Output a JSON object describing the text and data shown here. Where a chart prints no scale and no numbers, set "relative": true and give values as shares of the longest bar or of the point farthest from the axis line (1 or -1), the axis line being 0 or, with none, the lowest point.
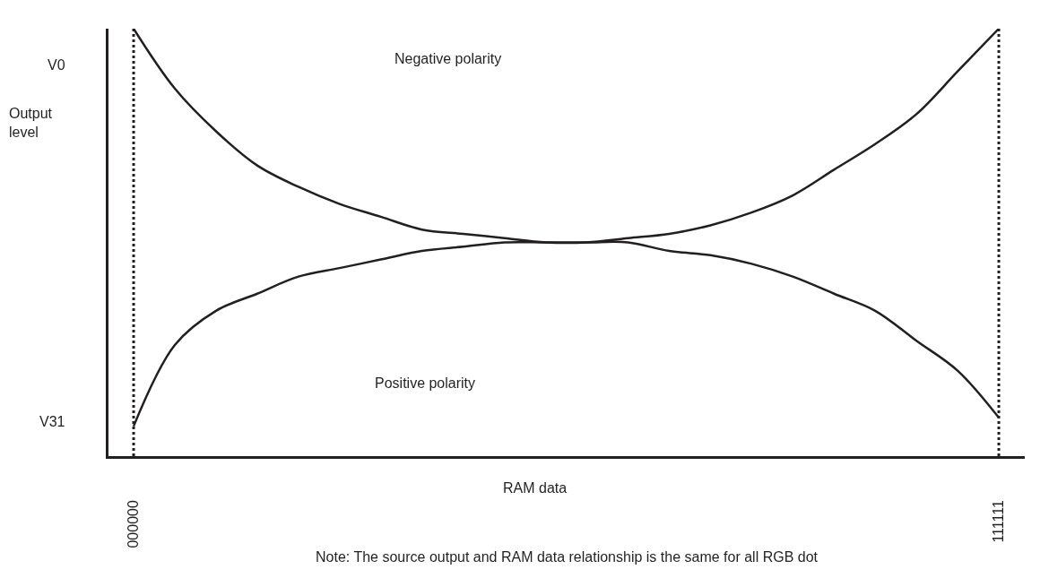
{
  "chart_data": {
    "type": "line",
    "relative": true,
    "xlabel": "RAM data",
    "ylabel": "Output\nlevel",
    "annotations": [
      "Note: The source output and RAM data relationship is the same for all RGB dot",
      "V0",
      "V31",
      "Negative polarity",
      "Positive polarity"
    ],
    "categories": [
      "000000",
      null,
      null,
      null,
      null,
      null,
      null,
      null,
      null,
      null,
      null,
      null,
      null,
      null,
      null,
      null,
      null,
      null,
      null,
      null,
      null,
      "111111"
    ],
    "series": [
      {
        "color": "#231f20",
        "values": [
          1,
          0.86,
          0.76,
          0.68,
          0.63,
          0.59,
          0.56,
          0.53,
          0.52,
          0.51,
          0.5,
          0.5,
          0.51,
          0.52,
          0.54,
          0.57,
          0.61,
          0.67,
          0.73,
          0.8,
          0.9,
          1
        ]
      },
      {
        "color": "#231f20",
        "values": [
          0.07,
          0.26,
          0.34,
          0.38,
          0.42,
          0.44,
          0.46,
          0.48,
          0.49,
          0.5,
          0.5,
          0.5,
          0.5,
          0.48,
          0.47,
          0.45,
          0.42,
          0.38,
          0.34,
          0.27,
          0.2,
          0.09
        ]
      }
    ],
    "ref_lines": [
      {
        "axis": "x",
        "value": "000000",
        "color": "#231f20",
        "line_style": "dotted"
      },
      {
        "axis": "x",
        "value": "111111",
        "color": "#231f20",
        "line_style": "dotted"
      }
    ],
    "marker": "none",
    "line_style": "solid"
  }
}
